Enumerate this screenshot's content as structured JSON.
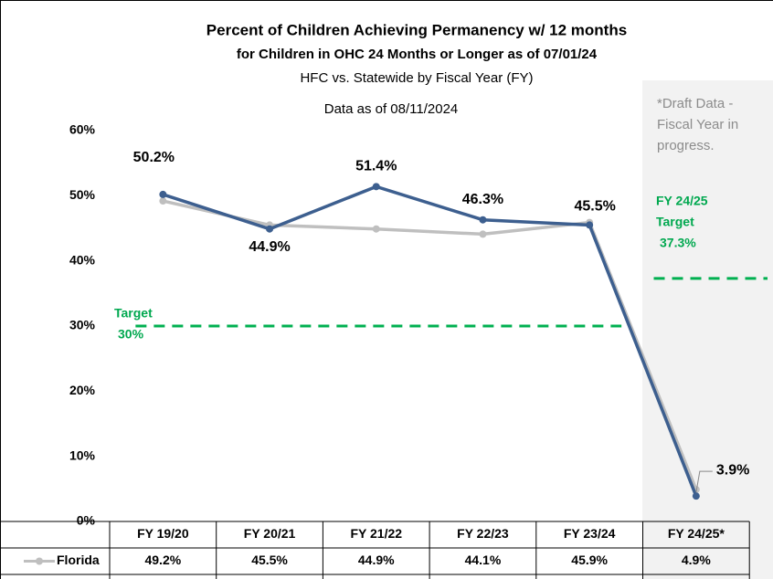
{
  "chart_data": {
    "type": "line",
    "title": "Percent of Children Achieving Permanency w/ 12 months",
    "subtitle": "for Children in OHC 24 Months or Longer as of 07/01/24",
    "subtitle2": "HFC vs. Statewide by Fiscal Year (FY)",
    "data_as_of": "Data as of 08/11/2024",
    "draft_note": [
      "*Draft Data -",
      "Fiscal Year in",
      "progress."
    ],
    "categories": [
      "FY 19/20",
      "FY 20/21",
      "FY 21/22",
      "FY 22/23",
      "FY 23/24",
      "FY 24/25*"
    ],
    "series": [
      {
        "color": "#3d5f8f",
        "values": [
          50.2,
          44.9,
          51.4,
          46.3,
          45.5,
          3.9
        ],
        "value_labels": [
          "50.2%",
          "44.9%",
          "51.4%",
          "46.3%",
          "45.5%",
          "3.9%"
        ]
      },
      {
        "name": "Florida",
        "color": "#bfbfbf",
        "values": [
          49.2,
          45.5,
          44.9,
          44.1,
          45.9,
          4.9
        ],
        "value_labels": [
          "49.2%",
          "45.5%",
          "44.9%",
          "44.1%",
          "45.9%",
          "4.9%"
        ]
      }
    ],
    "targets": [
      {
        "label": [
          "Target",
          "30%"
        ],
        "value": 30,
        "color": "#00b050"
      },
      {
        "label": [
          "FY 24/25",
          "Target",
          "37.3%"
        ],
        "value": 37.3,
        "color": "#00b050"
      }
    ],
    "ylim": [
      0,
      60
    ],
    "yticks": [
      {
        "value": 0,
        "label": "0%"
      },
      {
        "value": 10,
        "label": "10%"
      },
      {
        "value": 20,
        "label": "20%"
      },
      {
        "value": 30,
        "label": "30%"
      },
      {
        "value": 40,
        "label": "40%"
      },
      {
        "value": 50,
        "label": "50%"
      },
      {
        "value": 60,
        "label": "60%"
      }
    ]
  }
}
